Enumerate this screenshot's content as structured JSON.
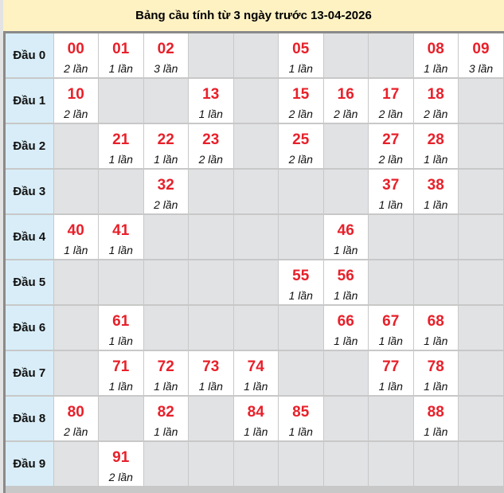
{
  "title": "Bảng cầu tính từ 3 ngày trước 13-04-2026",
  "colors": {
    "number": "#e8202a",
    "header_bg": "#fff2c2",
    "row_label_bg": "#d8edf7",
    "empty_cell": "#e1e2e4"
  },
  "rows": [
    {
      "label": "Đầu 0",
      "cells": [
        {
          "num": "00",
          "count": "2 lần"
        },
        {
          "num": "01",
          "count": "1 lần"
        },
        {
          "num": "02",
          "count": "3 lần"
        },
        null,
        null,
        {
          "num": "05",
          "count": "1 lần"
        },
        null,
        null,
        {
          "num": "08",
          "count": "1 lần"
        },
        {
          "num": "09",
          "count": "3 lần"
        }
      ]
    },
    {
      "label": "Đầu 1",
      "cells": [
        {
          "num": "10",
          "count": "2 lần"
        },
        null,
        null,
        {
          "num": "13",
          "count": "1 lần"
        },
        null,
        {
          "num": "15",
          "count": "2 lần"
        },
        {
          "num": "16",
          "count": "2 lần"
        },
        {
          "num": "17",
          "count": "2 lần"
        },
        {
          "num": "18",
          "count": "2 lần"
        },
        null
      ]
    },
    {
      "label": "Đầu 2",
      "cells": [
        null,
        {
          "num": "21",
          "count": "1 lần"
        },
        {
          "num": "22",
          "count": "1 lần"
        },
        {
          "num": "23",
          "count": "2 lần"
        },
        null,
        {
          "num": "25",
          "count": "2 lần"
        },
        null,
        {
          "num": "27",
          "count": "2 lần"
        },
        {
          "num": "28",
          "count": "1 lần"
        },
        null
      ]
    },
    {
      "label": "Đầu 3",
      "cells": [
        null,
        null,
        {
          "num": "32",
          "count": "2 lần"
        },
        null,
        null,
        null,
        null,
        {
          "num": "37",
          "count": "1 lần"
        },
        {
          "num": "38",
          "count": "1 lần"
        },
        null
      ]
    },
    {
      "label": "Đầu 4",
      "cells": [
        {
          "num": "40",
          "count": "1 lần"
        },
        {
          "num": "41",
          "count": "1 lần"
        },
        null,
        null,
        null,
        null,
        {
          "num": "46",
          "count": "1 lần"
        },
        null,
        null,
        null
      ]
    },
    {
      "label": "Đầu 5",
      "cells": [
        null,
        null,
        null,
        null,
        null,
        {
          "num": "55",
          "count": "1 lần"
        },
        {
          "num": "56",
          "count": "1 lần"
        },
        null,
        null,
        null
      ]
    },
    {
      "label": "Đầu 6",
      "cells": [
        null,
        {
          "num": "61",
          "count": "1 lần"
        },
        null,
        null,
        null,
        null,
        {
          "num": "66",
          "count": "1 lần"
        },
        {
          "num": "67",
          "count": "1 lần"
        },
        {
          "num": "68",
          "count": "1 lần"
        },
        null
      ]
    },
    {
      "label": "Đầu 7",
      "cells": [
        null,
        {
          "num": "71",
          "count": "1 lần"
        },
        {
          "num": "72",
          "count": "1 lần"
        },
        {
          "num": "73",
          "count": "1 lần"
        },
        {
          "num": "74",
          "count": "1 lần"
        },
        null,
        null,
        {
          "num": "77",
          "count": "1 lần"
        },
        {
          "num": "78",
          "count": "1 lần"
        },
        null
      ]
    },
    {
      "label": "Đầu 8",
      "cells": [
        {
          "num": "80",
          "count": "2 lần"
        },
        null,
        {
          "num": "82",
          "count": "1 lần"
        },
        null,
        {
          "num": "84",
          "count": "1 lần"
        },
        {
          "num": "85",
          "count": "1 lần"
        },
        null,
        null,
        {
          "num": "88",
          "count": "1 lần"
        },
        null
      ]
    },
    {
      "label": "Đầu 9",
      "cells": [
        null,
        {
          "num": "91",
          "count": "2 lần"
        },
        null,
        null,
        null,
        null,
        null,
        null,
        null,
        null
      ]
    }
  ]
}
